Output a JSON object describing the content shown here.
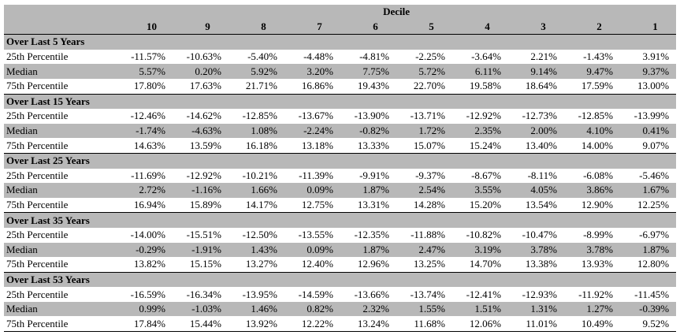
{
  "header": {
    "group_label": "Decile",
    "columns": [
      "10",
      "9",
      "8",
      "7",
      "6",
      "5",
      "4",
      "3",
      "2",
      "1"
    ]
  },
  "sections": [
    {
      "title": "Over Last 5 Years",
      "rows": [
        {
          "label": "25th Percentile",
          "values": [
            "-11.57%",
            "-10.63%",
            "-5.40%",
            "-4.48%",
            "-4.81%",
            "-2.25%",
            "-3.64%",
            "2.21%",
            "-1.43%",
            "3.91%"
          ]
        },
        {
          "label": "Median",
          "values": [
            "5.57%",
            "0.20%",
            "5.92%",
            "3.20%",
            "7.75%",
            "5.72%",
            "6.11%",
            "9.14%",
            "9.47%",
            "9.37%"
          ]
        },
        {
          "label": "75th Percentile",
          "values": [
            "17.80%",
            "17.63%",
            "21.71%",
            "16.86%",
            "19.43%",
            "22.70%",
            "19.58%",
            "18.64%",
            "17.59%",
            "13.00%"
          ]
        }
      ]
    },
    {
      "title": "Over Last 15 Years",
      "rows": [
        {
          "label": "25th Percentile",
          "values": [
            "-12.46%",
            "-14.62%",
            "-12.85%",
            "-13.67%",
            "-13.90%",
            "-13.71%",
            "-12.92%",
            "-12.73%",
            "-12.85%",
            "-13.99%"
          ]
        },
        {
          "label": "Median",
          "values": [
            "-1.74%",
            "-4.63%",
            "1.08%",
            "-2.24%",
            "-0.82%",
            "1.72%",
            "2.35%",
            "2.00%",
            "4.10%",
            "0.41%"
          ]
        },
        {
          "label": "75th Percentile",
          "values": [
            "14.63%",
            "13.59%",
            "16.18%",
            "13.18%",
            "13.33%",
            "15.07%",
            "15.24%",
            "13.40%",
            "14.00%",
            "9.07%"
          ]
        }
      ]
    },
    {
      "title": "Over Last 25 Years",
      "rows": [
        {
          "label": "25th Percentile",
          "values": [
            "-11.69%",
            "-12.92%",
            "-10.21%",
            "-11.39%",
            "-9.91%",
            "-9.37%",
            "-8.67%",
            "-8.11%",
            "-6.08%",
            "-5.46%"
          ]
        },
        {
          "label": "Median",
          "values": [
            "2.72%",
            "-1.16%",
            "1.66%",
            "0.09%",
            "1.87%",
            "2.54%",
            "3.55%",
            "4.05%",
            "3.86%",
            "1.67%"
          ]
        },
        {
          "label": "75th Percentile",
          "values": [
            "16.94%",
            "15.89%",
            "14.17%",
            "12.75%",
            "13.31%",
            "14.28%",
            "15.20%",
            "13.54%",
            "12.90%",
            "12.25%"
          ]
        }
      ]
    },
    {
      "title": "Over Last 35 Years",
      "rows": [
        {
          "label": "25th Percentile",
          "values": [
            "-14.00%",
            "-15.51%",
            "-12.50%",
            "-13.55%",
            "-12.35%",
            "-11.88%",
            "-10.82%",
            "-10.47%",
            "-8.99%",
            "-6.97%"
          ]
        },
        {
          "label": "Median",
          "values": [
            "-0.29%",
            "-1.91%",
            "1.43%",
            "0.09%",
            "1.87%",
            "2.47%",
            "3.19%",
            "3.78%",
            "3.78%",
            "1.87%"
          ]
        },
        {
          "label": "75th Percentile",
          "values": [
            "13.82%",
            "15.15%",
            "13.27%",
            "12.40%",
            "12.96%",
            "13.25%",
            "14.70%",
            "13.38%",
            "13.93%",
            "12.80%"
          ]
        }
      ]
    },
    {
      "title": "Over Last 53 Years",
      "rows": [
        {
          "label": "25th Percentile",
          "values": [
            "-16.59%",
            "-16.34%",
            "-13.95%",
            "-14.59%",
            "-13.66%",
            "-13.74%",
            "-12.41%",
            "-12.93%",
            "-11.92%",
            "-11.45%"
          ]
        },
        {
          "label": "Median",
          "values": [
            "0.99%",
            "-1.03%",
            "1.46%",
            "0.82%",
            "2.32%",
            "1.55%",
            "1.51%",
            "1.31%",
            "1.27%",
            "-0.39%"
          ]
        },
        {
          "label": "75th Percentile",
          "values": [
            "17.84%",
            "15.44%",
            "13.92%",
            "12.22%",
            "13.24%",
            "11.68%",
            "12.06%",
            "11.01%",
            "10.49%",
            "9.52%"
          ]
        }
      ]
    }
  ],
  "colors": {
    "shade": "#b8b8b8",
    "text": "#000000",
    "background": "#ffffff"
  }
}
